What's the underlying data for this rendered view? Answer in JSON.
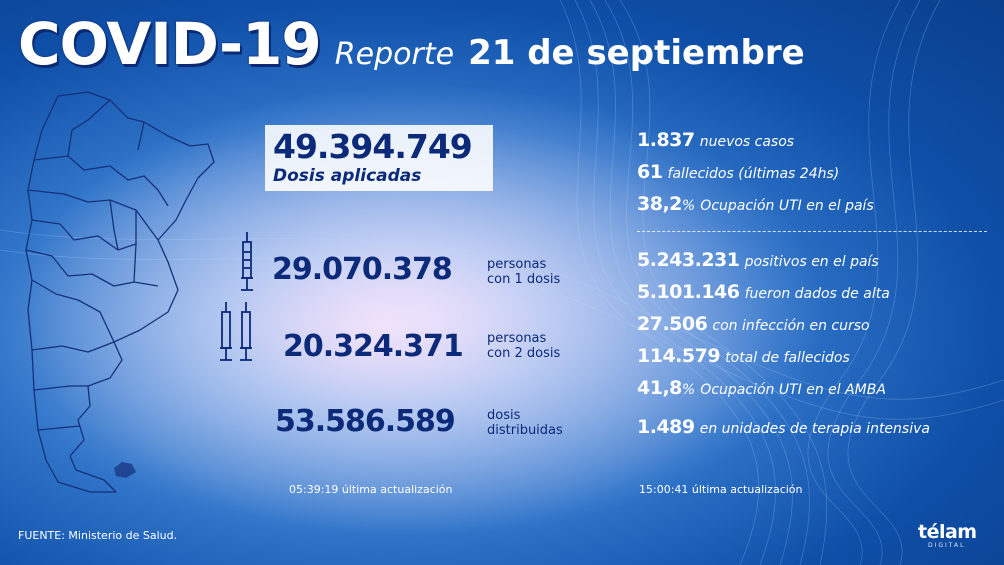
{
  "header": {
    "title_main": "COVID-19",
    "title_report": "Reporte",
    "title_date": "21 de septiembre"
  },
  "vaccines": {
    "applied_value": "49.394.749",
    "applied_label": "Dosis aplicadas",
    "first_dose_value": "29.070.378",
    "first_dose_label_1": "personas",
    "first_dose_label_2": "con 1 dosis",
    "second_dose_value": "20.324.371",
    "second_dose_label_1": "personas",
    "second_dose_label_2": "con 2 dosis",
    "distributed_value": "53.586.589",
    "distributed_label_1": "dosis",
    "distributed_label_2": "distribuidas",
    "update_time": "05:39:19",
    "update_label": "última actualización"
  },
  "daily": [
    {
      "value": "1.837",
      "text": "nuevos casos"
    },
    {
      "value": "61",
      "text": "fallecidos (últimas 24hs)"
    },
    {
      "value": "38,2",
      "unit": "%",
      "text": "Ocupación UTI en el país"
    }
  ],
  "totals": [
    {
      "value": "5.243.231",
      "text": "positivos en el país"
    },
    {
      "value": "5.101.146",
      "text": "fueron dados de alta"
    },
    {
      "value": "27.506",
      "text": "con infección en curso"
    },
    {
      "value": "114.579",
      "text": "total de fallecidos"
    },
    {
      "value": "41,8",
      "unit": "%",
      "text": "Ocupación UTI en el AMBA"
    },
    {
      "value": "1.489",
      "text": "en unidades de terapia intensiva"
    }
  ],
  "stats_update": {
    "time": "15:00:41",
    "label": "última actualización"
  },
  "footer": {
    "source": "FUENTE: Ministerio de Salud.",
    "brand": "télam",
    "brand_sub": "DIGITAL"
  },
  "icons": {
    "map": "argentina-map-icon",
    "syringe": "syringe-icon"
  },
  "colors": {
    "primary_text": "#0c2a7a",
    "white": "#ffffff",
    "accent_bg": "#1e5fb8"
  }
}
